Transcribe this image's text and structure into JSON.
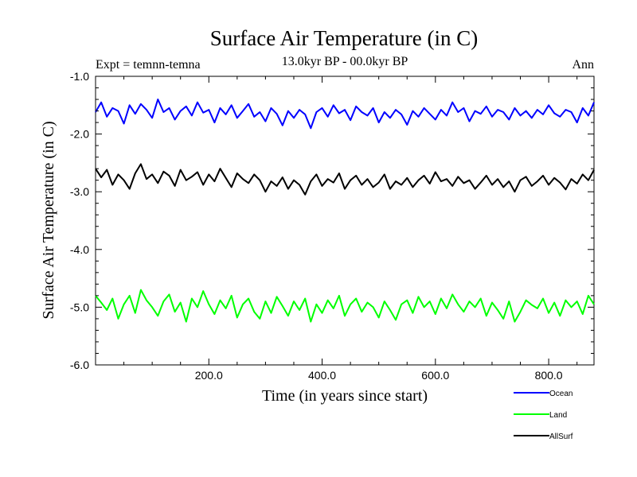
{
  "chart_data": {
    "type": "line",
    "title": "Surface Air Temperature (in C)",
    "subtitle": "13.0kyr BP - 00.0kyr BP",
    "experiment_label": "Expt = temnn-temna",
    "season_label": "Ann",
    "xlabel": "Time (in years since start)",
    "ylabel": "Surface Air Temperature (in C)",
    "xlim": [
      0,
      880
    ],
    "ylim": [
      -6.0,
      -1.0
    ],
    "x_ticks": [
      {
        "value": 200,
        "label": "200.0"
      },
      {
        "value": 400,
        "label": "400.0"
      },
      {
        "value": 600,
        "label": "600.0"
      },
      {
        "value": 800,
        "label": "800.0"
      }
    ],
    "y_ticks": [
      {
        "value": -1.0,
        "label": "-1.0"
      },
      {
        "value": -2.0,
        "label": "-2.0"
      },
      {
        "value": -3.0,
        "label": "-3.0"
      },
      {
        "value": -4.0,
        "label": "-4.0"
      },
      {
        "value": -5.0,
        "label": "-5.0"
      },
      {
        "value": -6.0,
        "label": "-6.0"
      }
    ],
    "grid": false,
    "legend_position": "bottom-right",
    "series": [
      {
        "name": "Ocean",
        "color": "#0000ff",
        "x_start": 0,
        "x_step": 10,
        "values": [
          -1.62,
          -1.45,
          -1.7,
          -1.55,
          -1.6,
          -1.82,
          -1.5,
          -1.65,
          -1.48,
          -1.58,
          -1.72,
          -1.4,
          -1.62,
          -1.55,
          -1.75,
          -1.6,
          -1.52,
          -1.68,
          -1.45,
          -1.63,
          -1.58,
          -1.8,
          -1.55,
          -1.66,
          -1.5,
          -1.72,
          -1.6,
          -1.48,
          -1.7,
          -1.62,
          -1.78,
          -1.55,
          -1.65,
          -1.85,
          -1.6,
          -1.72,
          -1.58,
          -1.66,
          -1.9,
          -1.62,
          -1.55,
          -1.7,
          -1.5,
          -1.64,
          -1.58,
          -1.76,
          -1.52,
          -1.62,
          -1.68,
          -1.55,
          -1.8,
          -1.62,
          -1.72,
          -1.58,
          -1.66,
          -1.84,
          -1.6,
          -1.7,
          -1.55,
          -1.65,
          -1.75,
          -1.58,
          -1.68,
          -1.45,
          -1.62,
          -1.55,
          -1.78,
          -1.6,
          -1.65,
          -1.52,
          -1.7,
          -1.58,
          -1.62,
          -1.75,
          -1.55,
          -1.68,
          -1.6,
          -1.72,
          -1.58,
          -1.66,
          -1.5,
          -1.64,
          -1.7,
          -1.58,
          -1.62,
          -1.8,
          -1.55,
          -1.68,
          -1.45
        ]
      },
      {
        "name": "AllSurf",
        "color": "#000000",
        "x_start": 0,
        "x_step": 10,
        "values": [
          -2.6,
          -2.75,
          -2.62,
          -2.88,
          -2.7,
          -2.8,
          -2.95,
          -2.68,
          -2.52,
          -2.78,
          -2.7,
          -2.85,
          -2.65,
          -2.72,
          -2.9,
          -2.62,
          -2.8,
          -2.74,
          -2.66,
          -2.88,
          -2.7,
          -2.82,
          -2.6,
          -2.76,
          -2.92,
          -2.68,
          -2.78,
          -2.85,
          -2.7,
          -2.8,
          -3.0,
          -2.82,
          -2.9,
          -2.75,
          -2.95,
          -2.8,
          -2.88,
          -3.05,
          -2.82,
          -2.7,
          -2.9,
          -2.78,
          -2.84,
          -2.68,
          -2.95,
          -2.8,
          -2.72,
          -2.88,
          -2.78,
          -2.92,
          -2.84,
          -2.7,
          -2.95,
          -2.82,
          -2.88,
          -2.76,
          -2.92,
          -2.8,
          -2.72,
          -2.86,
          -2.66,
          -2.82,
          -2.78,
          -2.9,
          -2.74,
          -2.85,
          -2.8,
          -2.95,
          -2.84,
          -2.72,
          -2.88,
          -2.78,
          -2.92,
          -2.82,
          -3.0,
          -2.8,
          -2.74,
          -2.9,
          -2.82,
          -2.72,
          -2.88,
          -2.76,
          -2.84,
          -2.96,
          -2.78,
          -2.86,
          -2.7,
          -2.8,
          -2.62
        ]
      },
      {
        "name": "Land",
        "color": "#00ff00",
        "x_start": 0,
        "x_step": 10,
        "values": [
          -4.8,
          -4.92,
          -5.05,
          -4.85,
          -5.2,
          -4.95,
          -4.8,
          -5.1,
          -4.7,
          -4.88,
          -5.0,
          -5.15,
          -4.9,
          -4.78,
          -5.08,
          -4.92,
          -5.25,
          -4.85,
          -5.0,
          -4.72,
          -4.95,
          -5.12,
          -4.88,
          -5.02,
          -4.8,
          -5.18,
          -4.95,
          -4.85,
          -5.08,
          -5.2,
          -4.9,
          -5.1,
          -4.82,
          -4.98,
          -5.15,
          -4.9,
          -5.05,
          -4.85,
          -5.25,
          -4.95,
          -5.1,
          -4.88,
          -5.02,
          -4.8,
          -5.15,
          -4.95,
          -4.85,
          -5.08,
          -4.92,
          -5.0,
          -5.18,
          -4.9,
          -5.05,
          -5.22,
          -4.95,
          -4.88,
          -5.1,
          -4.82,
          -5.0,
          -4.9,
          -5.12,
          -4.85,
          -5.02,
          -4.78,
          -4.95,
          -5.08,
          -4.9,
          -5.0,
          -4.85,
          -5.15,
          -4.92,
          -5.05,
          -5.2,
          -4.9,
          -5.25,
          -5.08,
          -4.88,
          -4.96,
          -5.02,
          -4.85,
          -5.1,
          -4.92,
          -5.15,
          -4.88,
          -5.0,
          -4.9,
          -5.12,
          -4.8,
          -4.95
        ]
      }
    ]
  }
}
